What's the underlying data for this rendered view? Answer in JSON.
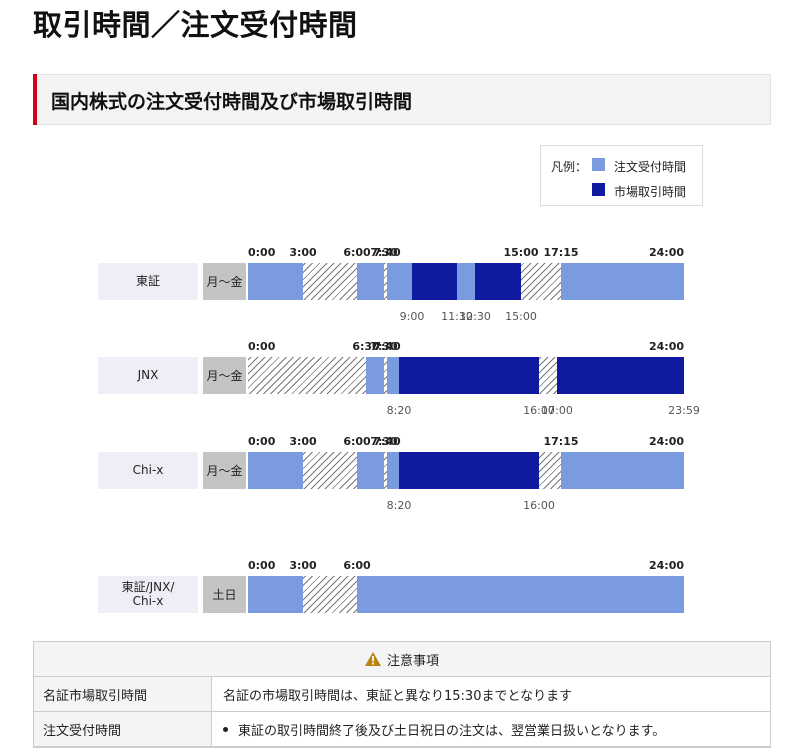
{
  "page_title": "取引時間／注文受付時間",
  "section_title": "国内株式の注文受付時間及び市場取引時間",
  "colors": {
    "accent_bar": "#d0021b",
    "order_accept": "#7b9be0",
    "market_trading": "#0f1aa0",
    "closed_hatch": "#777777",
    "row_label_bg": "#eeeef7",
    "day_label_bg": "#c4c4c4"
  },
  "legend": {
    "label": "凡例：",
    "order_accept": "注文受付時間",
    "market_trading": "市場取引時間"
  },
  "timeline": {
    "rows": [
      {
        "name": "東証",
        "days": "月〜金",
        "segments": [
          {
            "from": "0:00",
            "to": "3:00",
            "type": "accept"
          },
          {
            "from": "3:00",
            "to": "6:00",
            "type": "closed"
          },
          {
            "from": "6:00",
            "to": "7:30",
            "type": "accept"
          },
          {
            "from": "7:30",
            "to": "7:40",
            "type": "closed"
          },
          {
            "from": "7:40",
            "to": "9:00",
            "type": "accept"
          },
          {
            "from": "9:00",
            "to": "11:30",
            "type": "market"
          },
          {
            "from": "11:30",
            "to": "12:30",
            "type": "accept"
          },
          {
            "from": "12:30",
            "to": "15:00",
            "type": "market"
          },
          {
            "from": "15:00",
            "to": "17:15",
            "type": "closed"
          },
          {
            "from": "17:15",
            "to": "24:00",
            "type": "accept"
          }
        ],
        "top_labels": [
          "0:00",
          "3:00",
          "6:00",
          "7:30",
          "7:40",
          "15:00",
          "17:15",
          "24:00"
        ],
        "bottom_labels": [
          "9:00",
          "11:30",
          "12:30",
          "15:00"
        ]
      },
      {
        "name": "JNX",
        "days": "月〜金",
        "segments": [
          {
            "from": "0:00",
            "to": "6:30",
            "type": "closed"
          },
          {
            "from": "6:30",
            "to": "7:30",
            "type": "accept"
          },
          {
            "from": "7:30",
            "to": "7:40",
            "type": "closed"
          },
          {
            "from": "7:40",
            "to": "8:20",
            "type": "accept"
          },
          {
            "from": "8:20",
            "to": "16:00",
            "type": "market"
          },
          {
            "from": "16:00",
            "to": "17:00",
            "type": "closed"
          },
          {
            "from": "17:00",
            "to": "23:59",
            "type": "market"
          }
        ],
        "top_labels": [
          "0:00",
          "6:30",
          "7:30",
          "7:40",
          "24:00"
        ],
        "bottom_labels": [
          "8:20",
          "16:00",
          "17:00",
          "23:59"
        ]
      },
      {
        "name": "Chi-x",
        "days": "月〜金",
        "segments": [
          {
            "from": "0:00",
            "to": "3:00",
            "type": "accept"
          },
          {
            "from": "3:00",
            "to": "6:00",
            "type": "closed"
          },
          {
            "from": "6:00",
            "to": "7:30",
            "type": "accept"
          },
          {
            "from": "7:30",
            "to": "7:40",
            "type": "closed"
          },
          {
            "from": "7:40",
            "to": "8:20",
            "type": "accept"
          },
          {
            "from": "8:20",
            "to": "16:00",
            "type": "market"
          },
          {
            "from": "16:00",
            "to": "17:15",
            "type": "closed"
          },
          {
            "from": "17:15",
            "to": "24:00",
            "type": "accept"
          }
        ],
        "top_labels": [
          "0:00",
          "3:00",
          "6:00",
          "7:30",
          "7:40",
          "17:15",
          "24:00"
        ],
        "bottom_labels": [
          "8:20",
          "16:00"
        ]
      },
      {
        "name": "東証/JNX/\nChi-x",
        "days": "土日",
        "segments": [
          {
            "from": "0:00",
            "to": "3:00",
            "type": "accept"
          },
          {
            "from": "3:00",
            "to": "6:00",
            "type": "closed"
          },
          {
            "from": "6:00",
            "to": "24:00",
            "type": "accept"
          }
        ],
        "top_labels": [
          "0:00",
          "3:00",
          "6:00",
          "24:00"
        ],
        "bottom_labels": []
      }
    ]
  },
  "notes": {
    "title": "注意事項",
    "rows": [
      {
        "key": "名証市場取引時間",
        "value": "名証の市場取引時間は、東証と異なり15:30までとなります",
        "bullet": false
      },
      {
        "key": "注文受付時間",
        "value": "東証の取引時間終了後及び土日祝日の注文は、翌営業日扱いとなります。",
        "bullet": true
      }
    ]
  }
}
